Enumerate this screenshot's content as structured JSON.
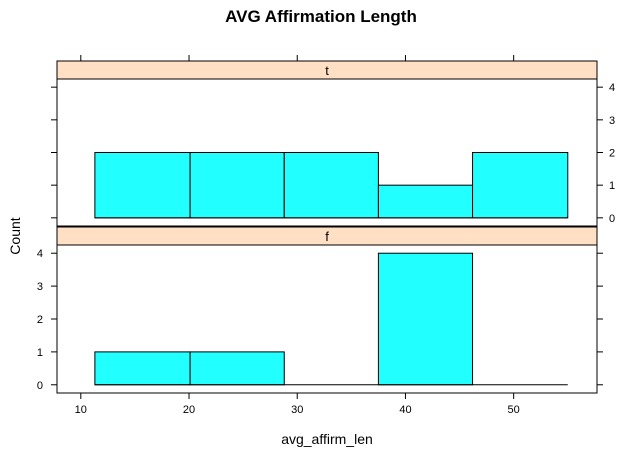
{
  "chart_data": {
    "type": "bar",
    "title": "AVG Affirmation Length",
    "xlabel": "avg_affirm_len",
    "ylabel": "Count",
    "xlim": [
      7.8,
      57.7
    ],
    "ylim": [
      -0.25,
      4.25
    ],
    "x_ticks": [
      10,
      20,
      30,
      40,
      50
    ],
    "y_ticks": [
      0,
      1,
      2,
      3,
      4
    ],
    "bin_edges": [
      11.3,
      20.1,
      28.8,
      37.5,
      46.2,
      55.0
    ],
    "bar_color": "#22ffff",
    "strip_color": "#ffe0c4",
    "panels": [
      {
        "label": "t",
        "counts": [
          2,
          2,
          2,
          1,
          2
        ]
      },
      {
        "label": "f",
        "counts": [
          1,
          1,
          0,
          4,
          0
        ]
      }
    ]
  }
}
